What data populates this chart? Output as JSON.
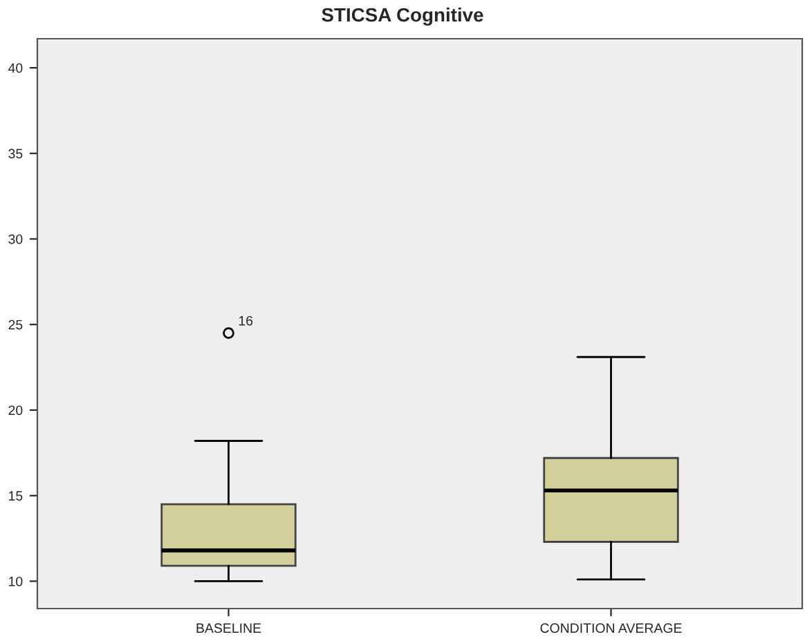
{
  "chart_data": {
    "type": "box",
    "title": "STICSA Cognitive",
    "categories": [
      "BASELINE",
      "CONDITION AVERAGE"
    ],
    "boxes": [
      {
        "low": 10,
        "q1": 10.9,
        "median": 11.8,
        "q3": 14.5,
        "high": 18.2,
        "outliers": [
          24.5
        ]
      },
      {
        "low": 10.1,
        "q1": 12.3,
        "median": 15.3,
        "q3": 17.2,
        "high": 23.1
      }
    ],
    "color": "#d3cf9b",
    "ylim": [
      8.4,
      41.7
    ],
    "yticks": [
      10,
      15,
      20,
      25,
      30,
      35,
      40
    ],
    "grid": false,
    "annotations": [
      "16"
    ]
  }
}
